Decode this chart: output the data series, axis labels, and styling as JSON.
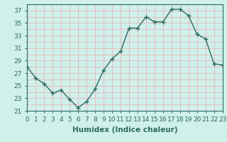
{
  "x": [
    0,
    1,
    2,
    3,
    4,
    5,
    6,
    7,
    8,
    9,
    10,
    11,
    12,
    13,
    14,
    15,
    16,
    17,
    18,
    19,
    20,
    21,
    22,
    23
  ],
  "y": [
    28,
    26.2,
    25.3,
    23.8,
    24.3,
    22.8,
    21.5,
    22.5,
    24.5,
    27.5,
    29.3,
    30.5,
    34.2,
    34.2,
    36.0,
    35.2,
    35.2,
    37.2,
    37.2,
    36.2,
    33.2,
    32.5,
    28.5,
    28.3
  ],
  "line_color": "#2e6b5e",
  "marker": "+",
  "marker_size": 4,
  "bg_color": "#cff0eb",
  "grid_color": "#f0aaaa",
  "xlabel": "Humidex (Indice chaleur)",
  "xlim": [
    0,
    23
  ],
  "ylim": [
    21,
    38
  ],
  "yticks": [
    21,
    23,
    25,
    27,
    29,
    31,
    33,
    35,
    37
  ],
  "xticks": [
    0,
    1,
    2,
    3,
    4,
    5,
    6,
    7,
    8,
    9,
    10,
    11,
    12,
    13,
    14,
    15,
    16,
    17,
    18,
    19,
    20,
    21,
    22,
    23
  ],
  "xlabel_fontsize": 7.5,
  "tick_fontsize": 6.5,
  "line_width": 1.0,
  "marker_linewidth": 1.0
}
